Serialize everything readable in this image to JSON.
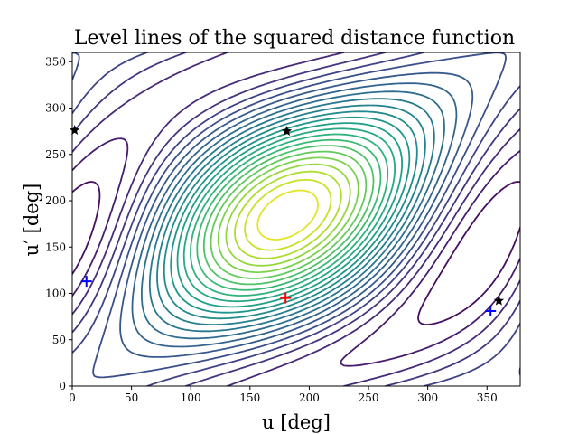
{
  "chart_data": {
    "type": "contour",
    "title": "Level lines of the squared distance function",
    "xlabel": "u [deg]",
    "ylabel": "u′ [deg]",
    "xlim": [
      0,
      378
    ],
    "ylim": [
      0,
      360
    ],
    "xticks": [
      "0",
      "50",
      "100",
      "150",
      "200",
      "250",
      "300",
      "350"
    ],
    "yticks": [
      "0",
      "50",
      "100",
      "150",
      "200",
      "250",
      "300",
      "350"
    ],
    "grid": false,
    "legend": "none",
    "colormap": "viridis",
    "levels": 24,
    "markers": [
      {
        "kind": "plus",
        "color": "#ff0000",
        "x": 180,
        "y": 95
      },
      {
        "kind": "plus",
        "color": "#0000ff",
        "x": 12,
        "y": 113
      },
      {
        "kind": "plus",
        "color": "#0000ff",
        "x": 353,
        "y": 81
      },
      {
        "kind": "star",
        "color": "#000000",
        "x": 2,
        "y": 276
      },
      {
        "kind": "star",
        "color": "#000000",
        "x": 181,
        "y": 275
      },
      {
        "kind": "star",
        "color": "#000000",
        "x": 360,
        "y": 92
      }
    ]
  }
}
